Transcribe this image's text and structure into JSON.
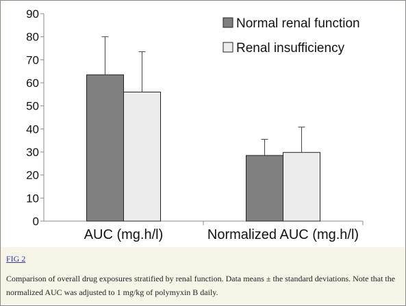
{
  "figure": {
    "link_text": "FIG 2",
    "caption": "Comparison of overall drug exposures stratified by renal function. Data means ± the standard deviations. Note that the normalized AUC was adjusted to 1 mg/kg of polymyxin B daily."
  },
  "chart_data": {
    "type": "bar",
    "categories": [
      "AUC (mg.h/l)",
      "Normalized AUC (mg.h/l)"
    ],
    "series": [
      {
        "name": "Normal renal function",
        "values": [
          63.5,
          28.5
        ],
        "error": [
          16.5,
          7
        ],
        "color": "#808080"
      },
      {
        "name": "Renal insufficiency",
        "values": [
          56,
          29.8
        ],
        "error": [
          17.5,
          11
        ],
        "color": "#ececec"
      }
    ],
    "ylim": [
      0,
      90
    ],
    "yticks": [
      "0",
      "10",
      "20",
      "30",
      "40",
      "50",
      "60",
      "70",
      "80",
      "90"
    ],
    "legend_position": "top-right",
    "grid": false,
    "error_bars": "standard deviation"
  }
}
